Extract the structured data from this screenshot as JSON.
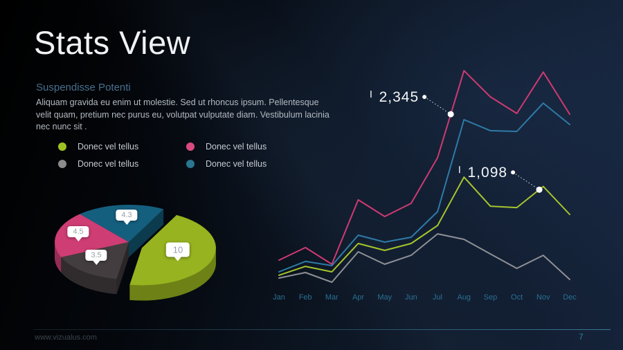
{
  "slide": {
    "title": "Stats View"
  },
  "intro": {
    "heading": "Suspendisse Potenti",
    "body": "Aliquam gravida eu enim ut molestie. Sed ut rhoncus ipsum. Pellentesque velit quam, pretium nec purus eu, volutpat vulputate diam. Vestibulum lacinia nec nunc sit ."
  },
  "legend": {
    "items": [
      {
        "label": "Donec vel tellus",
        "color": "#9fc222"
      },
      {
        "label": "Donec vel tellus",
        "color": "#d94b7e"
      },
      {
        "label": "Donec vel tellus",
        "color": "#8b8b8b"
      },
      {
        "label": "Donec vel tellus",
        "color": "#2a7590"
      }
    ]
  },
  "footer": {
    "website": "www.vizualus.com",
    "page_number": "7"
  },
  "colors": {
    "background_top_left": "#000000",
    "background_bottom_right": "#15233a",
    "accent_teal": "#2f7e9c"
  },
  "chart_data": [
    {
      "type": "pie",
      "style": "3d-exploded",
      "start_angle_deg": -62,
      "slices": [
        {
          "label": "10",
          "value": 10,
          "color": "#97b31f",
          "exploded": true
        },
        {
          "label": "3.5",
          "value": 3.5,
          "color": "#433d3f",
          "exploded": false
        },
        {
          "label": "4.5",
          "value": 4.5,
          "color": "#ce3d74",
          "exploded": false
        },
        {
          "label": "4.3",
          "value": 4.3,
          "color": "#155f7e",
          "exploded": false
        }
      ]
    },
    {
      "type": "line",
      "categories": [
        "Jan",
        "Feb",
        "Mar",
        "Apr",
        "May",
        "Jun",
        "Jul",
        "Aug",
        "Sep",
        "Oct",
        "Nov",
        "Dec"
      ],
      "series": [
        {
          "name": "Donec vel tellus",
          "color": "#cf3a72",
          "values": [
            305,
            440,
            261,
            954,
            775,
            916,
            1408,
            2345,
            2064,
            1885,
            2330,
            1877
          ]
        },
        {
          "name": "Donec vel tellus",
          "color": "#2e7ba8",
          "values": [
            179,
            291,
            246,
            574,
            499,
            551,
            827,
            1818,
            1699,
            1691,
            1996,
            1766
          ]
        },
        {
          "name": "Donec vel tellus",
          "color": "#a6c52d",
          "values": [
            142,
            238,
            179,
            484,
            410,
            484,
            678,
            1199,
            886,
            871,
            1098,
            797
          ]
        },
        {
          "name": "Donec vel tellus",
          "color": "#8f9096",
          "values": [
            112,
            171,
            67,
            395,
            261,
            357,
            588,
            529,
            372,
            216,
            357,
            97
          ]
        }
      ],
      "ylim": [
        0,
        2500
      ],
      "grid": false,
      "legend_position": "none",
      "axis_color": "#3e97c9",
      "tick_color": "#2b7095",
      "annotations": [
        {
          "text": "2,345",
          "series": 0,
          "x": 6.5
        },
        {
          "text": "1,098",
          "series": 2,
          "x": 9.85
        }
      ]
    }
  ]
}
